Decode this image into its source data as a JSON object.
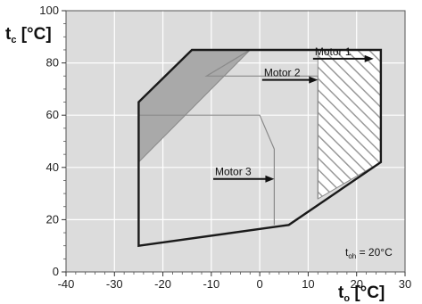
{
  "chart_data": {
    "type": "area",
    "xlabel": {
      "main": "t",
      "sub": "o",
      "unit": " [°C]"
    },
    "ylabel": {
      "main": "t",
      "sub": "c",
      "unit": " [°C]"
    },
    "xlim": [
      -40,
      30
    ],
    "ylim": [
      0,
      100
    ],
    "x_ticks": [
      "-40",
      "-30",
      "-20",
      "-10",
      "0",
      "10",
      "20",
      "30"
    ],
    "x_tick_values": [
      -40,
      -30,
      -20,
      -10,
      0,
      10,
      20,
      30
    ],
    "y_ticks": [
      "0",
      "20",
      "40",
      "60",
      "80",
      "100"
    ],
    "y_tick_values": [
      0,
      20,
      40,
      60,
      80,
      100
    ],
    "grid": true,
    "colors": {
      "plot_background": "#dcdcdc",
      "grid": "#ffffff",
      "envelope": "#1a1a1a",
      "inner_line": "#8a8a8a",
      "shaded_region": "#a9a9a9",
      "hatch": "#9a9a9a"
    },
    "series": [
      {
        "name": "Motor 1",
        "envelope": [
          [
            -25,
            10
          ],
          [
            6,
            18
          ],
          [
            25,
            42
          ],
          [
            25,
            85
          ],
          [
            -14,
            85
          ],
          [
            -25,
            65
          ],
          [
            -25,
            10
          ]
        ],
        "hatched_region": [
          [
            12,
            85
          ],
          [
            25,
            85
          ],
          [
            25,
            42
          ],
          [
            12,
            28
          ]
        ]
      },
      {
        "name": "Motor 2",
        "boundary": [
          [
            12,
            28
          ],
          [
            12,
            75
          ],
          [
            -11,
            75
          ],
          [
            -2,
            85
          ]
        ]
      },
      {
        "name": "Motor 3",
        "boundary": [
          [
            3,
            18
          ],
          [
            3,
            47
          ],
          [
            0,
            60
          ],
          [
            -25,
            60
          ]
        ]
      }
    ],
    "shaded_region": [
      [
        -25,
        65
      ],
      [
        -14,
        85
      ],
      [
        -2,
        85
      ],
      [
        -25,
        42
      ]
    ],
    "annotations": [
      {
        "text": "Motor 1",
        "arrow_from": [
          11,
          81.6
        ],
        "arrow_to": [
          23.5,
          81.6
        ]
      },
      {
        "text": "Motor 2",
        "arrow_from": [
          0.5,
          73.5
        ],
        "arrow_to": [
          12,
          73.5
        ]
      },
      {
        "text": "Motor 3",
        "arrow_from": [
          -9.6,
          35.6
        ],
        "arrow_to": [
          3,
          35.6
        ]
      }
    ],
    "note": {
      "main": "t",
      "sub": "oh",
      "rest": " = 20°C"
    }
  }
}
